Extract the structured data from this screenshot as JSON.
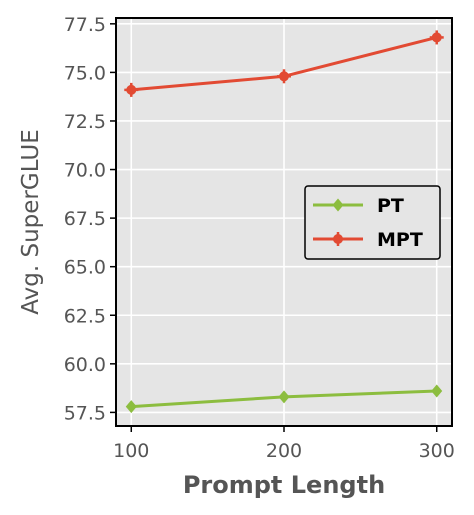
{
  "chart_data": {
    "type": "line",
    "title": "",
    "xlabel": "Prompt Length",
    "ylabel": "Avg. SuperGLUE",
    "x": [
      100,
      200,
      300
    ],
    "xticks": [
      "100",
      "200",
      "300"
    ],
    "yticks": [
      "57.5",
      "60.0",
      "62.5",
      "65.0",
      "67.5",
      "70.0",
      "72.5",
      "75.0",
      "77.5"
    ],
    "ytick_values": [
      57.5,
      60.0,
      62.5,
      65.0,
      67.5,
      70.0,
      72.5,
      75.0,
      77.5
    ],
    "xlim": [
      90,
      310
    ],
    "ylim": [
      56.8,
      77.8
    ],
    "grid": true,
    "legend_position": "center-right",
    "series": [
      {
        "name": "PT",
        "values": [
          57.8,
          58.3,
          58.6
        ],
        "color": "#8cbd3f",
        "marker": "diamond"
      },
      {
        "name": "MPT",
        "values": [
          74.1,
          74.8,
          76.8
        ],
        "color": "#e24a33",
        "marker": "circle-plus"
      }
    ],
    "colors": {
      "background": "#e5e5e5",
      "grid": "#ffffff",
      "axis": "#000000",
      "label": "#555555"
    }
  }
}
